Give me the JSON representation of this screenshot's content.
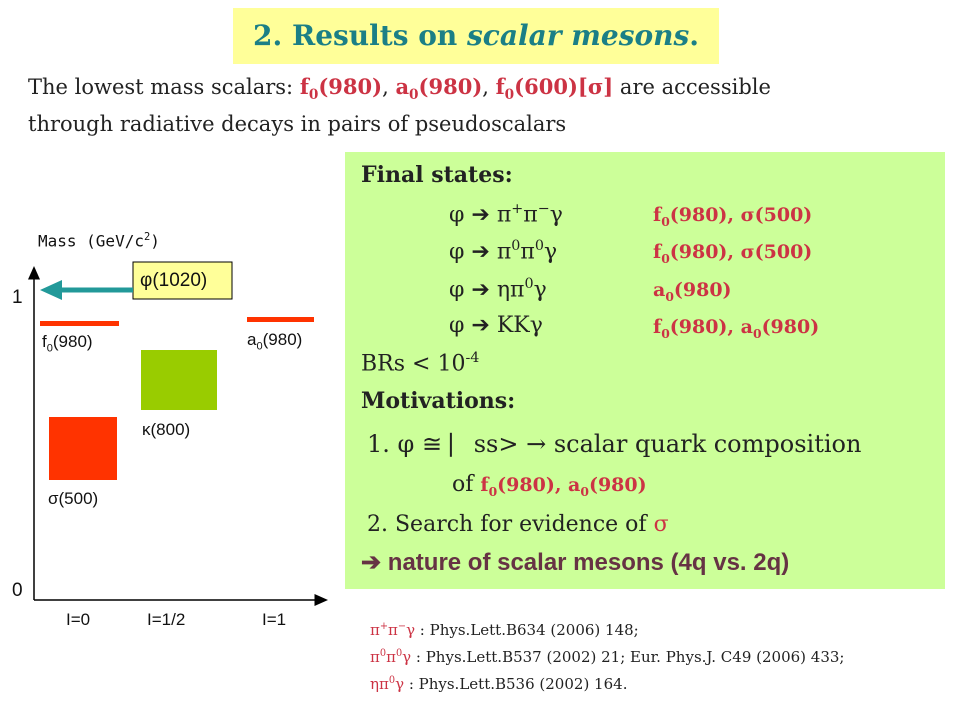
{
  "title": {
    "prefix": "2. Results on ",
    "italic": "scalar mesons",
    "suffix": "."
  },
  "intro": {
    "line1_a": "The lowest mass scalars: ",
    "f0_980": "f",
    "f0_980_sub": "0",
    "f0_980_arg": "(980)",
    "sep1": ", ",
    "a0_980": "a",
    "a0_980_sub": "0",
    "a0_980_arg": "(980)",
    "sep2": ", ",
    "f0_600": "f",
    "f0_600_sub": "0",
    "f0_600_arg": "(600)[σ]",
    "line1_b": "  are accessible",
    "line2": "through radiative decays in pairs of pseudoscalars"
  },
  "panel": {
    "final_states_heading": "Final states:",
    "decays": [
      {
        "lhs": "φ  ➔  π",
        "sup1": "+",
        "mid1": "π",
        "sup2": "−",
        "end": "γ",
        "rhs": "f",
        "rhs_sub": "0",
        "rhs_tail": "(980), σ(500)"
      },
      {
        "lhs": "φ  ➔  π",
        "sup1": "0",
        "mid1": "π",
        "sup2": "0",
        "end": "γ",
        "rhs": "f",
        "rhs_sub": "0",
        "rhs_tail": "(980), σ(500)"
      },
      {
        "lhs": "φ  ➔  ηπ",
        "sup1": "0",
        "mid1": "",
        "sup2": "",
        "end": "γ",
        "rhs": "a",
        "rhs_sub": "0",
        "rhs_tail": "(980)"
      },
      {
        "lhs": "φ  ➔  KKγ",
        "sup1": "",
        "mid1": "",
        "sup2": "",
        "end": "",
        "rhs": "f",
        "rhs_sub": "0",
        "rhs_tail": "(980), a"
      }
    ],
    "decay4_rhs_sub2": "0",
    "decay4_rhs_tail2": "(980)",
    "brs": "BRs < 10",
    "brs_exp": "-4",
    "motivations_heading": "Motivations:",
    "m1_a": "1. φ ≅ ⎸ss>  ",
    "m1_arrow": "→",
    "m1_b": " scalar quark composition",
    "m1_c": "of ",
    "m1_f": "f",
    "m1_f_sub": "0",
    "m1_f_tail": "(980)",
    "m1_sep": ", ",
    "m1_a0": "a",
    "m1_a0_sub": "0",
    "m1_a0_tail": "(980)",
    "m2": "2. Search for evidence of ",
    "m2_sigma": "σ",
    "conclusion_arrow": "➔",
    "conclusion": " nature of scalar mesons (4q vs. 2q)"
  },
  "diagram": {
    "y_label": "Mass (GeV/c",
    "y_label_sup": "2",
    "y_label_end": ")",
    "tick_1": "1",
    "tick_0": "0",
    "x_labels": [
      "I=0",
      "I=1/2",
      "I=1"
    ],
    "phi_label": "φ(1020)",
    "f0_label": "f",
    "f0_label_sub": "0",
    "f0_label_tail": "(980)",
    "a0_label": "a",
    "a0_label_sub": "0",
    "a0_label_tail": "(980)",
    "kappa_label": "κ(800)",
    "sigma_label": "σ(500)",
    "colors": {
      "level_red": "#ff3300",
      "kappa_green": "#99cc00",
      "arrow_teal": "#229999",
      "phi_box": "#ffff99"
    }
  },
  "refs": [
    {
      "sym": "π",
      "s1": "+",
      "m": "π",
      "s2": "−",
      "e": "γ",
      "text": " :  Phys.Lett.B634 (2006) 148;"
    },
    {
      "sym": "π",
      "s1": "0",
      "m": "π",
      "s2": "0",
      "e": "γ",
      "text": " :  Phys.Lett.B537 (2002) 21; Eur. Phys.J. C49 (2006) 433;"
    },
    {
      "sym": "ηπ",
      "s1": "0",
      "m": "",
      "s2": "",
      "e": "γ",
      "text": "  :  Phys.Lett.B536 (2002) 164."
    }
  ]
}
